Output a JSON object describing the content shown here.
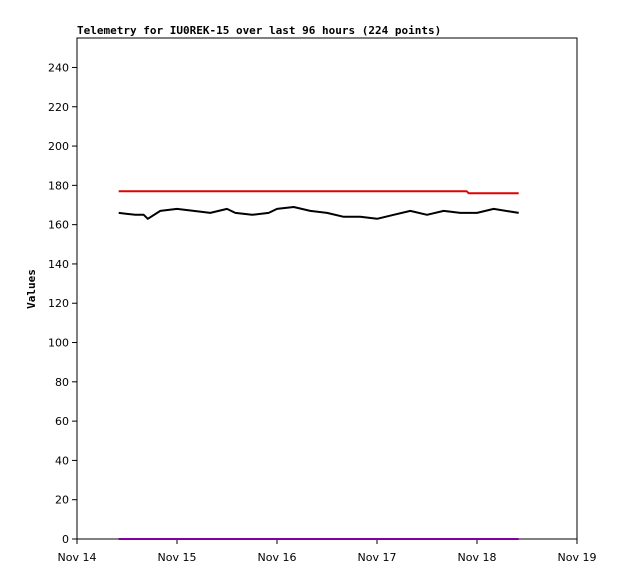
{
  "chart_data": {
    "type": "line",
    "title": "Telemetry for IU0REK-15 over last 96 hours (224 points)",
    "xlabel": "",
    "ylabel": "Values",
    "xlim": [
      "Nov 14",
      "Nov 19"
    ],
    "ylim": [
      0,
      255
    ],
    "x_tick_labels": [
      "Nov 14",
      "Nov 15",
      "Nov 16",
      "Nov 17",
      "Nov 18",
      "Nov 19"
    ],
    "y_ticks": [
      0,
      20,
      40,
      60,
      80,
      100,
      120,
      140,
      160,
      180,
      200,
      220,
      240
    ],
    "grid": false,
    "legend": "none",
    "series": [
      {
        "color": "#e00000",
        "x": [
          "Nov 14 10:00",
          "Nov 17 21:30",
          "Nov 17 22:00",
          "Nov 18 10:00"
        ],
        "values": [
          177,
          177,
          176,
          176
        ]
      },
      {
        "color": "#000000",
        "x": [
          "Nov 14 10:00",
          "Nov 14 14:00",
          "Nov 14 16:00",
          "Nov 14 17:00",
          "Nov 14 20:00",
          "Nov 15 00:00",
          "Nov 15 04:00",
          "Nov 15 08:00",
          "Nov 15 12:00",
          "Nov 15 14:00",
          "Nov 15 18:00",
          "Nov 15 22:00",
          "Nov 16 00:00",
          "Nov 16 04:00",
          "Nov 16 08:00",
          "Nov 16 12:00",
          "Nov 16 16:00",
          "Nov 16 20:00",
          "Nov 17 00:00",
          "Nov 17 04:00",
          "Nov 17 08:00",
          "Nov 17 12:00",
          "Nov 17 16:00",
          "Nov 17 20:00",
          "Nov 18 00:00",
          "Nov 18 04:00",
          "Nov 18 10:00"
        ],
        "values": [
          166,
          165,
          165,
          163,
          167,
          168,
          167,
          166,
          168,
          166,
          165,
          166,
          168,
          169,
          167,
          166,
          164,
          164,
          163,
          165,
          167,
          165,
          167,
          166,
          166,
          168,
          166
        ]
      },
      {
        "color": "#8000a0",
        "x": [
          "Nov 14 10:00",
          "Nov 18 10:00"
        ],
        "values": [
          0,
          0
        ]
      }
    ]
  }
}
